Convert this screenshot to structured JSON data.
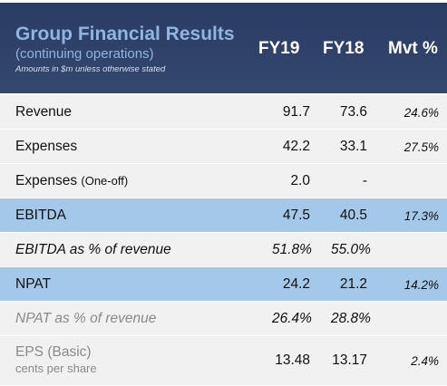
{
  "header": {
    "title": "Group Financial Results",
    "subtitle": "(continuing operations)",
    "note": "Amounts in $m unless otherwise stated",
    "col_fy19": "FY19",
    "col_fy18": "FY18",
    "col_mvt": "Mvt %"
  },
  "rows": [
    {
      "label": "Revenue",
      "fy19": "91.7",
      "fy18": "73.6",
      "mvt": "24.6%"
    },
    {
      "label": "Expenses",
      "fy19": "42.2",
      "fy18": "33.1",
      "mvt": "27.5%"
    },
    {
      "label": "Expenses",
      "label_suffix": "(One-off)",
      "fy19": "2.0",
      "fy18": "-",
      "mvt": ""
    },
    {
      "label": "EBITDA",
      "fy19": "47.5",
      "fy18": "40.5",
      "mvt": "17.3%"
    },
    {
      "label": "EBITDA as % of revenue",
      "fy19": "51.8%",
      "fy18": "55.0%",
      "mvt": ""
    },
    {
      "label": "NPAT",
      "fy19": "24.2",
      "fy18": "21.2",
      "mvt": "14.2%"
    },
    {
      "label": "NPAT as % of revenue",
      "fy19": "26.4%",
      "fy18": "28.8%",
      "mvt": ""
    },
    {
      "label": "EPS (Basic)",
      "label_sub": "cents per share",
      "fy19": "13.48",
      "fy18": "13.17",
      "mvt": "2.4%"
    }
  ],
  "colors": {
    "header_bg": "#2f4269",
    "title_blue": "#8fb5e0",
    "row_plain": "#f1f1f1",
    "row_highlight": "#a4c8ea"
  }
}
